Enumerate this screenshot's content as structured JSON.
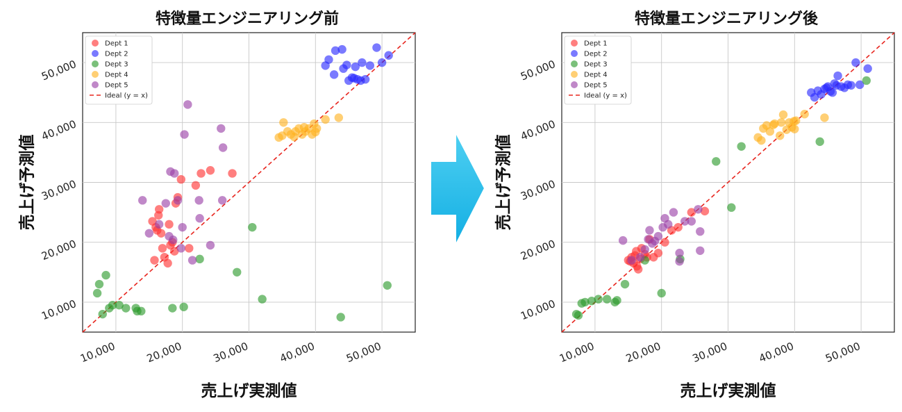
{
  "chart_data": [
    {
      "type": "scatter",
      "title": "特徴量エンジニアリング前",
      "xlabel": "売上げ実測値",
      "ylabel": "売上げ予測値",
      "xlim": [
        5000,
        55000
      ],
      "ylim": [
        5000,
        55000
      ],
      "xticks": [
        10000,
        20000,
        30000,
        40000,
        50000
      ],
      "yticks": [
        10000,
        20000,
        30000,
        40000,
        50000
      ],
      "tick_labels": [
        "10,000",
        "20,000",
        "30,000",
        "40,000",
        "50,000"
      ],
      "grid": true,
      "legend_position": "top-left",
      "ideal_line_label": "Ideal (y = x)",
      "series": [
        {
          "name": "Dept 1",
          "color": "#ff3030",
          "points": [
            [
              15500,
              23500
            ],
            [
              16000,
              22500
            ],
            [
              16200,
              22000
            ],
            [
              16500,
              25500
            ],
            [
              16800,
              21500
            ],
            [
              17000,
              19000
            ],
            [
              17300,
              17500
            ],
            [
              15800,
              17000
            ],
            [
              17800,
              16500
            ],
            [
              18000,
              23000
            ],
            [
              18200,
              19500
            ],
            [
              18500,
              20000
            ],
            [
              18800,
              18500
            ],
            [
              19000,
              26500
            ],
            [
              19300,
              27500
            ],
            [
              19800,
              30500
            ],
            [
              21000,
              19000
            ],
            [
              22000,
              29500
            ],
            [
              22800,
              31500
            ],
            [
              24200,
              32000
            ],
            [
              27500,
              31500
            ],
            [
              16400,
              24500
            ]
          ]
        },
        {
          "name": "Dept 2",
          "color": "#2828ff",
          "points": [
            [
              41500,
              49500
            ],
            [
              42000,
              50500
            ],
            [
              42800,
              48000
            ],
            [
              43000,
              52000
            ],
            [
              44000,
              52200
            ],
            [
              44200,
              49000
            ],
            [
              45000,
              47000
            ],
            [
              45500,
              47500
            ],
            [
              46000,
              49300
            ],
            [
              46300,
              47200
            ],
            [
              46800,
              47000
            ],
            [
              47000,
              50000
            ],
            [
              47500,
              47200
            ],
            [
              48200,
              49500
            ],
            [
              49200,
              52500
            ],
            [
              50000,
              50000
            ],
            [
              51000,
              51200
            ],
            [
              44700,
              49600
            ],
            [
              45800,
              47400
            ]
          ]
        },
        {
          "name": "Dept 3",
          "color": "#2a9a2a",
          "points": [
            [
              7200,
              11500
            ],
            [
              7500,
              13000
            ],
            [
              8000,
              8000
            ],
            [
              8500,
              14500
            ],
            [
              9000,
              9000
            ],
            [
              9500,
              9500
            ],
            [
              10500,
              9500
            ],
            [
              11500,
              9000
            ],
            [
              13000,
              9000
            ],
            [
              13200,
              8500
            ],
            [
              13800,
              8500
            ],
            [
              18500,
              9000
            ],
            [
              20200,
              9200
            ],
            [
              22600,
              17200
            ],
            [
              28200,
              15000
            ],
            [
              30500,
              22500
            ],
            [
              32000,
              10500
            ],
            [
              43800,
              7500
            ],
            [
              50800,
              12800
            ]
          ]
        },
        {
          "name": "Dept 4",
          "color": "#ffb21f",
          "points": [
            [
              34500,
              37500
            ],
            [
              35200,
              40000
            ],
            [
              35800,
              38500
            ],
            [
              36300,
              38000
            ],
            [
              37000,
              38500
            ],
            [
              37500,
              39000
            ],
            [
              38000,
              38000
            ],
            [
              38500,
              38500
            ],
            [
              39000,
              39000
            ],
            [
              39500,
              38000
            ],
            [
              40200,
              39000
            ],
            [
              41500,
              40500
            ],
            [
              43500,
              40800
            ],
            [
              35000,
              37800
            ],
            [
              36800,
              37600
            ],
            [
              38300,
              39200
            ],
            [
              40000,
              38400
            ],
            [
              39800,
              39800
            ]
          ]
        },
        {
          "name": "Dept 5",
          "color": "#9a3fa6",
          "points": [
            [
              14000,
              27000
            ],
            [
              15000,
              21500
            ],
            [
              16500,
              23000
            ],
            [
              17500,
              26500
            ],
            [
              18000,
              21000
            ],
            [
              18200,
              31800
            ],
            [
              18800,
              31500
            ],
            [
              19300,
              27000
            ],
            [
              19800,
              19000
            ],
            [
              20000,
              22500
            ],
            [
              20300,
              38000
            ],
            [
              20800,
              43000
            ],
            [
              21500,
              17000
            ],
            [
              22500,
              27000
            ],
            [
              22600,
              24000
            ],
            [
              24200,
              19500
            ],
            [
              25800,
              39000
            ],
            [
              26000,
              27000
            ],
            [
              26100,
              35800
            ],
            [
              18600,
              20400
            ]
          ]
        }
      ]
    },
    {
      "type": "scatter",
      "title": "特徴量エンジニアリング後",
      "xlabel": "売上げ実測値",
      "ylabel": "売上げ予測値",
      "xlim": [
        5000,
        55000
      ],
      "ylim": [
        5000,
        55000
      ],
      "xticks": [
        10000,
        20000,
        30000,
        40000,
        50000
      ],
      "yticks": [
        10000,
        20000,
        30000,
        40000,
        50000
      ],
      "tick_labels": [
        "10,000",
        "20,000",
        "30,000",
        "40,000",
        "50,000"
      ],
      "grid": true,
      "legend_position": "top-left",
      "ideal_line_label": "Ideal (y = x)",
      "series": [
        {
          "name": "Dept 1",
          "color": "#ff3030",
          "points": [
            [
              15000,
              17000
            ],
            [
              15500,
              17500
            ],
            [
              15800,
              16500
            ],
            [
              16000,
              17800
            ],
            [
              16300,
              16000
            ],
            [
              16500,
              15500
            ],
            [
              16800,
              17200
            ],
            [
              17000,
              19000
            ],
            [
              17500,
              18000
            ],
            [
              17800,
              17500
            ],
            [
              18200,
              20500
            ],
            [
              18800,
              17500
            ],
            [
              19500,
              18200
            ],
            [
              20500,
              20000
            ],
            [
              21500,
              22000
            ],
            [
              22500,
              22500
            ],
            [
              24500,
              25000
            ],
            [
              26500,
              25200
            ],
            [
              16200,
              18500
            ],
            [
              15300,
              16800
            ]
          ]
        },
        {
          "name": "Dept 2",
          "color": "#2828ff",
          "points": [
            [
              42500,
              45000
            ],
            [
              43000,
              44200
            ],
            [
              43500,
              45300
            ],
            [
              44000,
              44700
            ],
            [
              44500,
              45600
            ],
            [
              45000,
              46000
            ],
            [
              45400,
              45200
            ],
            [
              45700,
              45000
            ],
            [
              46000,
              46500
            ],
            [
              46500,
              47800
            ],
            [
              47000,
              46000
            ],
            [
              47500,
              45800
            ],
            [
              48000,
              46300
            ],
            [
              48500,
              46200
            ],
            [
              49200,
              50000
            ],
            [
              49800,
              46300
            ],
            [
              51000,
              49000
            ],
            [
              44800,
              45800
            ],
            [
              46300,
              46200
            ]
          ]
        },
        {
          "name": "Dept 3",
          "color": "#2a9a2a",
          "points": [
            [
              7200,
              8000
            ],
            [
              7500,
              7800
            ],
            [
              8000,
              9800
            ],
            [
              8500,
              10000
            ],
            [
              9500,
              10200
            ],
            [
              10500,
              10500
            ],
            [
              11800,
              10500
            ],
            [
              13000,
              10000
            ],
            [
              13300,
              10300
            ],
            [
              14500,
              13000
            ],
            [
              17500,
              17000
            ],
            [
              20000,
              11500
            ],
            [
              22800,
              17200
            ],
            [
              28200,
              33500
            ],
            [
              30500,
              25800
            ],
            [
              32000,
              36000
            ],
            [
              43800,
              36800
            ],
            [
              50800,
              47000
            ]
          ]
        },
        {
          "name": "Dept 4",
          "color": "#ffb21f",
          "points": [
            [
              34500,
              37500
            ],
            [
              35000,
              37000
            ],
            [
              35300,
              39000
            ],
            [
              35800,
              39500
            ],
            [
              36300,
              38500
            ],
            [
              37000,
              39800
            ],
            [
              37800,
              37800
            ],
            [
              38000,
              40000
            ],
            [
              38300,
              41300
            ],
            [
              38800,
              38800
            ],
            [
              39200,
              40000
            ],
            [
              39600,
              39200
            ],
            [
              40000,
              38900
            ],
            [
              40200,
              40300
            ],
            [
              41500,
              41400
            ],
            [
              44500,
              40800
            ],
            [
              36800,
              39600
            ],
            [
              39900,
              40200
            ]
          ]
        },
        {
          "name": "Dept 5",
          "color": "#9a3fa6",
          "points": [
            [
              14200,
              20300
            ],
            [
              15500,
              17000
            ],
            [
              16800,
              17500
            ],
            [
              17500,
              18800
            ],
            [
              18000,
              20500
            ],
            [
              18200,
              22000
            ],
            [
              18600,
              19800
            ],
            [
              19000,
              20200
            ],
            [
              19500,
              21000
            ],
            [
              20200,
              22500
            ],
            [
              20500,
              24000
            ],
            [
              21000,
              23000
            ],
            [
              21800,
              25000
            ],
            [
              22700,
              16800
            ],
            [
              22700,
              18200
            ],
            [
              23500,
              23500
            ],
            [
              24500,
              23500
            ],
            [
              25500,
              25500
            ],
            [
              25800,
              21800
            ],
            [
              25800,
              18600
            ]
          ]
        }
      ]
    }
  ]
}
